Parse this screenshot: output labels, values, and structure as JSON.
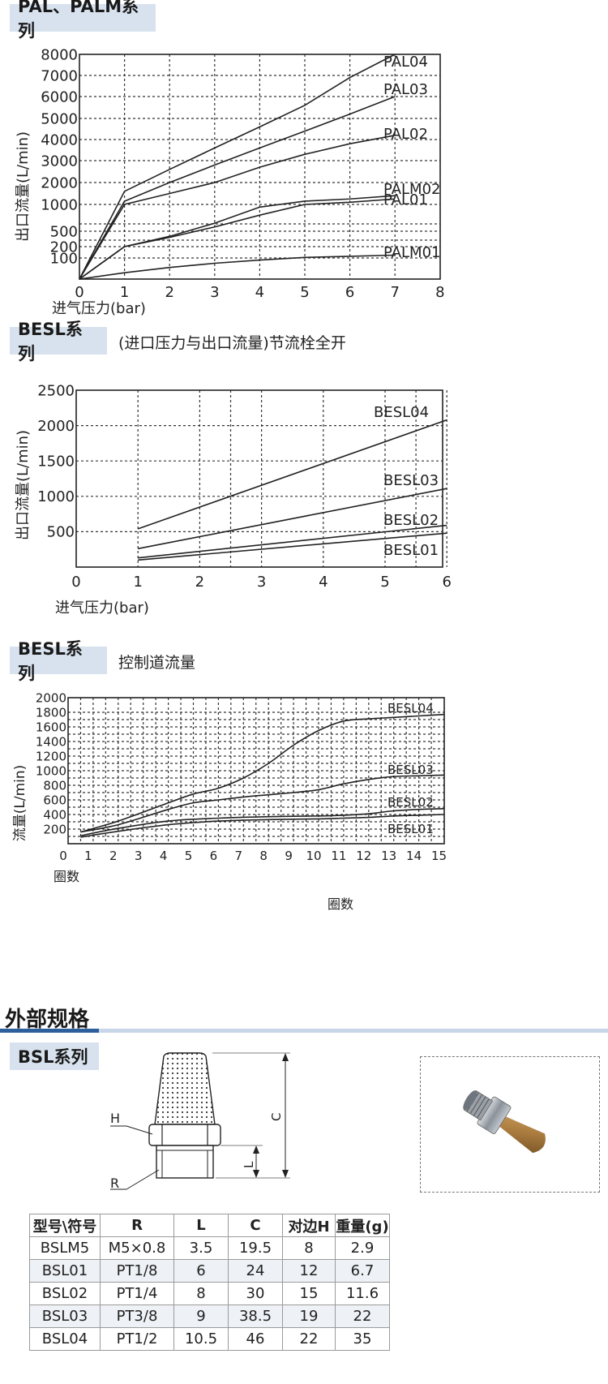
{
  "chart1": {
    "tab_title": "PAL、PALM系列",
    "ylabel": "出口流量(L/min)",
    "xlabel": "进气压力(bar)"
  },
  "chart2": {
    "tab_title": "BESL系列",
    "subtitle": "(进口压力与出口流量)节流栓全开",
    "ylabel": "出口流量(L/min)",
    "xlabel": "进气压力(bar)"
  },
  "chart3": {
    "tab_title": "BESL系列",
    "subtitle": "控制道流量",
    "ylabel": "流量(L/min)",
    "xlabel": "圈数",
    "xlabel2": "圈数"
  },
  "external": {
    "title": "外部规格",
    "tab_title": "BSL系列",
    "diagram_labels": {
      "h": "H",
      "r": "R",
      "l": "L",
      "c": "C"
    }
  },
  "spec_table": {
    "headers": [
      "型号\\符号",
      "R",
      "L",
      "C",
      "对边H",
      "重量(g)"
    ],
    "rows": [
      [
        "BSLM5",
        "M5×0.8",
        "3.5",
        "19.5",
        "8",
        "2.9"
      ],
      [
        "BSL01",
        "PT1/8",
        "6",
        "24",
        "12",
        "6.7"
      ],
      [
        "BSL02",
        "PT1/4",
        "8",
        "30",
        "15",
        "11.6"
      ],
      [
        "BSL03",
        "PT3/8",
        "9",
        "38.5",
        "19",
        "22"
      ],
      [
        "BSL04",
        "PT1/2",
        "10.5",
        "46",
        "22",
        "35"
      ]
    ]
  },
  "chart_data": [
    {
      "type": "line",
      "x_ticks": [
        "0",
        "1",
        "2",
        "3",
        "4",
        "5",
        "6",
        "7",
        "8"
      ],
      "y_ticks": [
        "100",
        "200",
        "500",
        "1000",
        "2000",
        "3000",
        "4000",
        "5000",
        "6000",
        "7000",
        "8000"
      ],
      "xlim": [
        0,
        8
      ],
      "y_scale": "nonlinear",
      "grid": "dashed",
      "series": [
        {
          "name": "PAL04",
          "x": [
            0,
            1,
            2,
            3,
            4,
            5,
            6,
            7
          ],
          "y": [
            0,
            1600,
            2600,
            3600,
            4600,
            5600,
            6900,
            8000
          ]
        },
        {
          "name": "PAL03",
          "x": [
            0,
            1,
            2,
            3,
            4,
            5,
            6,
            7
          ],
          "y": [
            0,
            1150,
            2000,
            2800,
            3600,
            4400,
            5200,
            6000
          ]
        },
        {
          "name": "PAL02",
          "x": [
            0,
            1,
            2,
            3,
            4,
            5,
            6,
            7
          ],
          "y": [
            0,
            1000,
            1500,
            2000,
            2700,
            3300,
            3800,
            4200
          ]
        },
        {
          "name": "PALM02",
          "x": [
            0,
            1,
            2,
            3,
            4,
            5,
            6,
            7
          ],
          "y": [
            0,
            200,
            400,
            650,
            950,
            1150,
            1250,
            1400
          ]
        },
        {
          "name": "PAL01",
          "x": [
            0,
            1,
            2,
            3,
            4,
            5,
            6,
            7
          ],
          "y": [
            0,
            200,
            380,
            580,
            800,
            1000,
            1100,
            1250
          ]
        },
        {
          "name": "PALM01",
          "x": [
            0,
            1,
            2,
            3,
            4,
            5,
            6,
            7
          ],
          "y": [
            0,
            30,
            55,
            75,
            90,
            105,
            115,
            125
          ]
        }
      ]
    },
    {
      "type": "line",
      "x_ticks": [
        "0",
        "1",
        "2",
        "3",
        "4",
        "5",
        "6"
      ],
      "y_ticks": [
        "500",
        "1000",
        "1500",
        "2000",
        "2500"
      ],
      "xlim": [
        0,
        6.5
      ],
      "ylim": [
        0,
        2500
      ],
      "grid": "dashed",
      "series": [
        {
          "name": "BESL04",
          "x": [
            1,
            6
          ],
          "y": [
            540,
            2080
          ]
        },
        {
          "name": "BESL03",
          "x": [
            1,
            6
          ],
          "y": [
            260,
            1110
          ]
        },
        {
          "name": "BESL02",
          "x": [
            1,
            6
          ],
          "y": [
            130,
            590
          ]
        },
        {
          "name": "BESL01",
          "x": [
            1,
            6
          ],
          "y": [
            100,
            480
          ]
        }
      ]
    },
    {
      "type": "line",
      "x_ticks": [
        "0",
        "1",
        "2",
        "3",
        "4",
        "5",
        "6",
        "7",
        "8",
        "9",
        "10",
        "11",
        "12",
        "13",
        "14",
        "15"
      ],
      "y_ticks": [
        "200",
        "400",
        "600",
        "800",
        "1000",
        "1200",
        "1400",
        "1600",
        "1800",
        "2000"
      ],
      "xlim": [
        0,
        15
      ],
      "ylim": [
        0,
        2000
      ],
      "grid": "dotted",
      "series": [
        {
          "name": "BESL04",
          "x": [
            0.5,
            2,
            4,
            5,
            6,
            7,
            8,
            9,
            10,
            11,
            12,
            13,
            14,
            15
          ],
          "y": [
            160,
            310,
            560,
            680,
            760,
            900,
            1100,
            1350,
            1550,
            1680,
            1710,
            1730,
            1750,
            1770
          ]
        },
        {
          "name": "BESL03",
          "x": [
            0.5,
            2,
            4,
            5,
            6,
            7,
            8,
            9,
            10,
            11,
            12,
            13,
            14,
            15
          ],
          "y": [
            160,
            260,
            470,
            560,
            600,
            640,
            670,
            700,
            740,
            820,
            880,
            920,
            930,
            940
          ]
        },
        {
          "name": "BESL02",
          "x": [
            0.5,
            2,
            4,
            6,
            8,
            10,
            11,
            12,
            13,
            14,
            15
          ],
          "y": [
            110,
            210,
            310,
            350,
            370,
            380,
            390,
            410,
            450,
            470,
            480
          ]
        },
        {
          "name": "BESL01",
          "x": [
            0.5,
            2,
            4,
            6,
            8,
            10,
            11,
            12,
            13,
            14,
            15
          ],
          "y": [
            90,
            170,
            260,
            310,
            330,
            340,
            350,
            360,
            380,
            390,
            400
          ]
        }
      ]
    }
  ]
}
